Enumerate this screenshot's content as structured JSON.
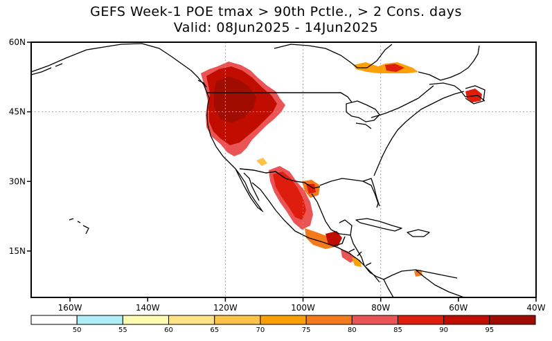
{
  "title": {
    "line1": "GEFS Week-1 POE tmax > 90th Pctle., > 2 Cons. days",
    "line2": "Valid: 08Jun2025 - 14Jun2025"
  },
  "map": {
    "lon_range": [
      -170,
      -40
    ],
    "lat_range": [
      5,
      60
    ],
    "lon_ticks": [
      {
        "lon": -160,
        "label": "160W"
      },
      {
        "lon": -140,
        "label": "140W"
      },
      {
        "lon": -120,
        "label": "120W"
      },
      {
        "lon": -100,
        "label": "100W"
      },
      {
        "lon": -80,
        "label": "80W"
      },
      {
        "lon": -60,
        "label": "60W"
      },
      {
        "lon": -40,
        "label": "40W"
      }
    ],
    "lat_ticks": [
      {
        "lat": 60,
        "label": "60N"
      },
      {
        "lat": 45,
        "label": "45N"
      },
      {
        "lat": 30,
        "label": "30N"
      },
      {
        "lat": 15,
        "label": "15N"
      }
    ],
    "gridlines_lon": [
      -120,
      -100,
      -80
    ],
    "gridlines_lat": [
      45
    ],
    "regions": [
      {
        "name": "pacific-northwest-great-basin",
        "poe_pct": 95
      },
      {
        "name": "southwest-mexico",
        "poe_pct": 90
      },
      {
        "name": "central-america",
        "poe_pct": 90
      },
      {
        "name": "quebec",
        "poe_pct": 85
      },
      {
        "name": "newfoundland",
        "poe_pct": 85
      }
    ]
  },
  "colorbar": {
    "bins": [
      {
        "color": "#ffffff",
        "label": "50"
      },
      {
        "color": "#aeeef6",
        "label": "55"
      },
      {
        "color": "#fefcb0",
        "label": "60"
      },
      {
        "color": "#fee387",
        "label": "65"
      },
      {
        "color": "#fdc349",
        "label": "70"
      },
      {
        "color": "#fd9f06",
        "label": "75"
      },
      {
        "color": "#f47a1c",
        "label": "80"
      },
      {
        "color": "#ea5454",
        "label": "85"
      },
      {
        "color": "#df1d0d",
        "label": "90"
      },
      {
        "color": "#c10c00",
        "label": "95"
      },
      {
        "color": "#a00d00",
        "label": ""
      }
    ]
  }
}
